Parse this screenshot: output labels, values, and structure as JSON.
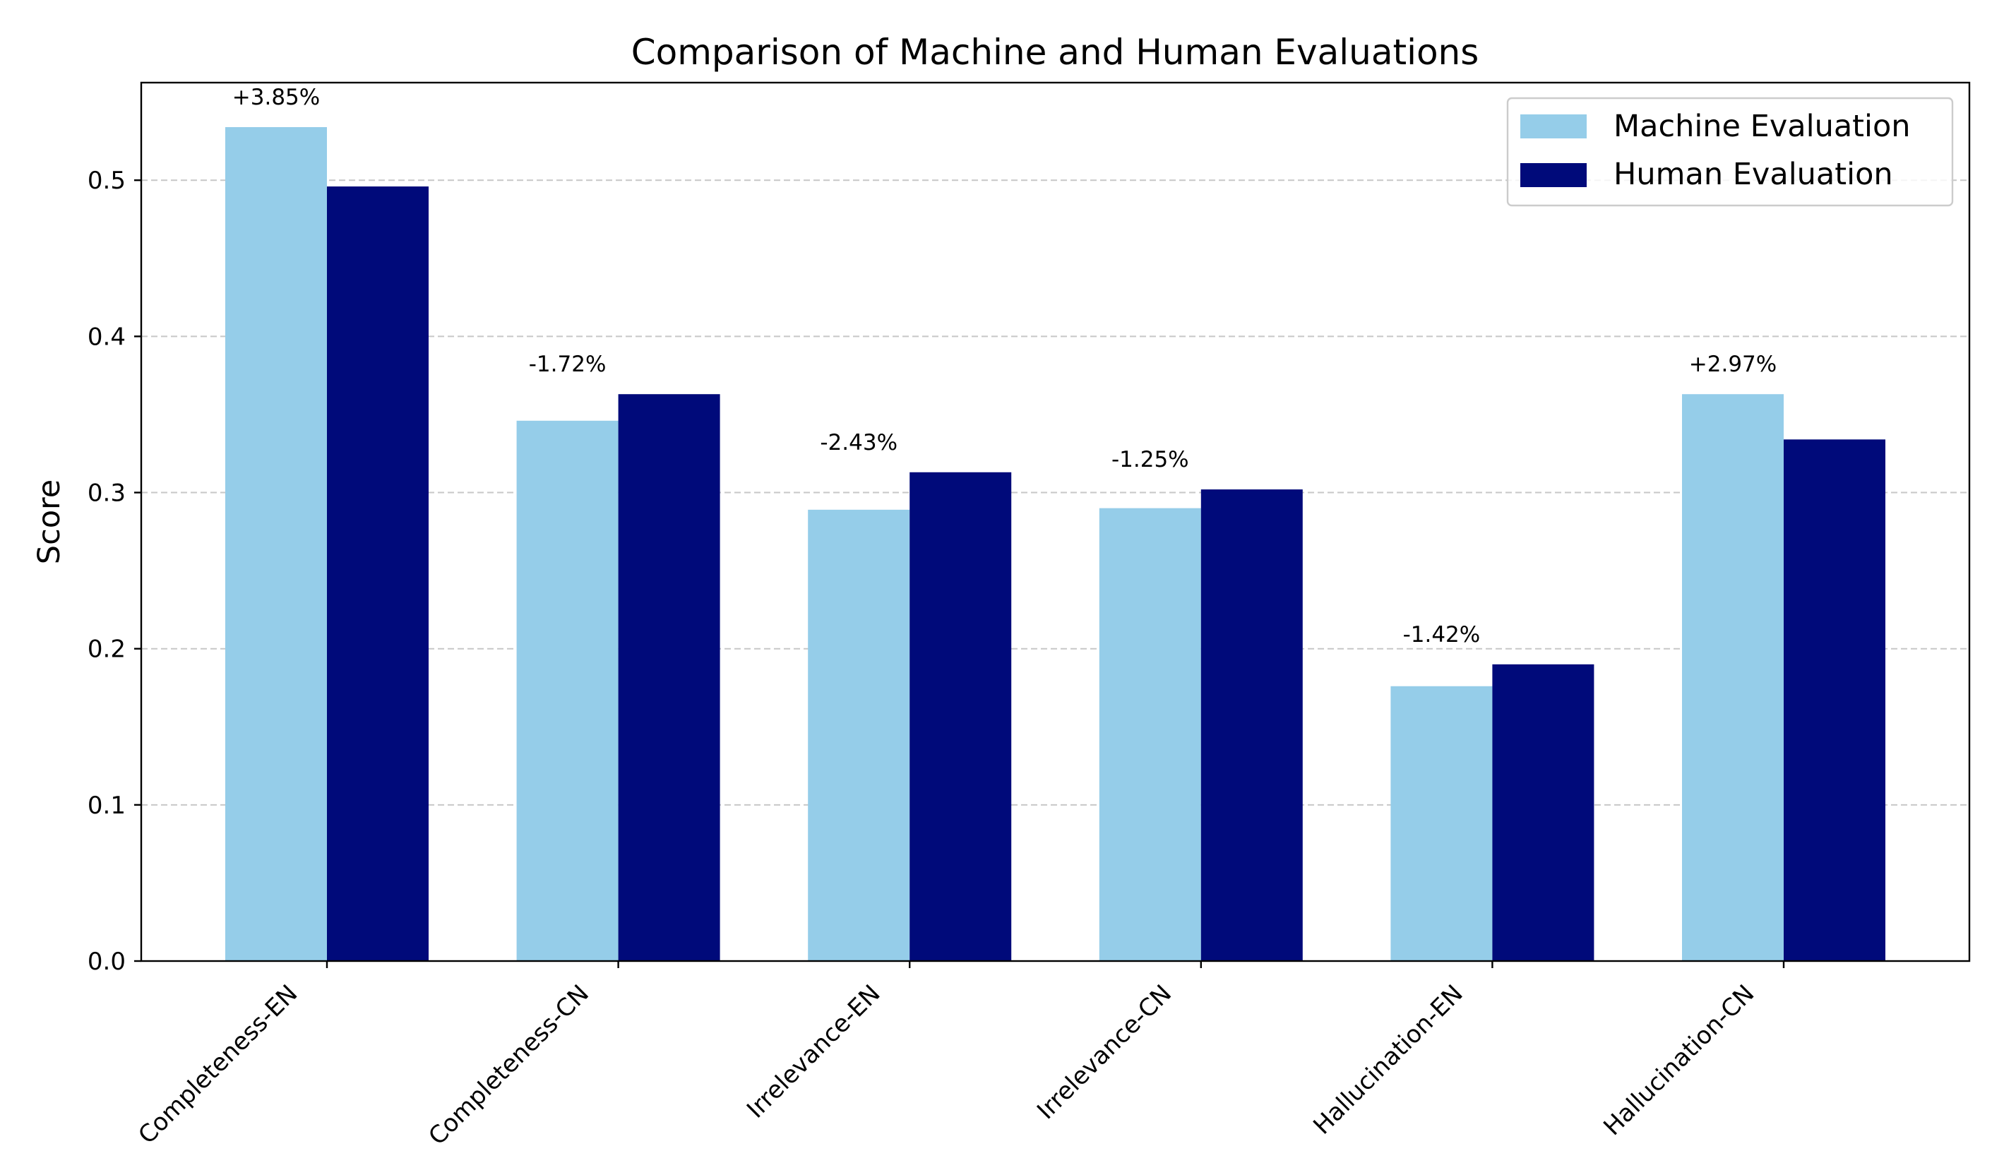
{
  "chart_data": {
    "type": "bar",
    "title": "Comparison of Machine and Human Evaluations",
    "xlabel": "",
    "ylabel": "Score",
    "categories": [
      "Completeness-EN",
      "Completeness-CN",
      "Irrelevance-EN",
      "Irrelevance-CN",
      "Hallucination-EN",
      "Hallucination-CN"
    ],
    "series": [
      {
        "name": "Machine Evaluation",
        "color": "#95cde9",
        "values": [
          0.534,
          0.346,
          0.289,
          0.29,
          0.176,
          0.363
        ]
      },
      {
        "name": "Human Evaluation",
        "color": "#000a7a",
        "values": [
          0.496,
          0.363,
          0.313,
          0.302,
          0.19,
          0.334
        ]
      }
    ],
    "annotations": [
      "+3.85%",
      "-1.72%",
      "-2.43%",
      "-1.25%",
      "-1.42%",
      "+2.97%"
    ],
    "ylim": [
      0,
      0.5625
    ],
    "yticks": [
      "0.0",
      "0.1",
      "0.2",
      "0.3",
      "0.4",
      "0.5"
    ],
    "grid": true,
    "legend": "top-right"
  }
}
